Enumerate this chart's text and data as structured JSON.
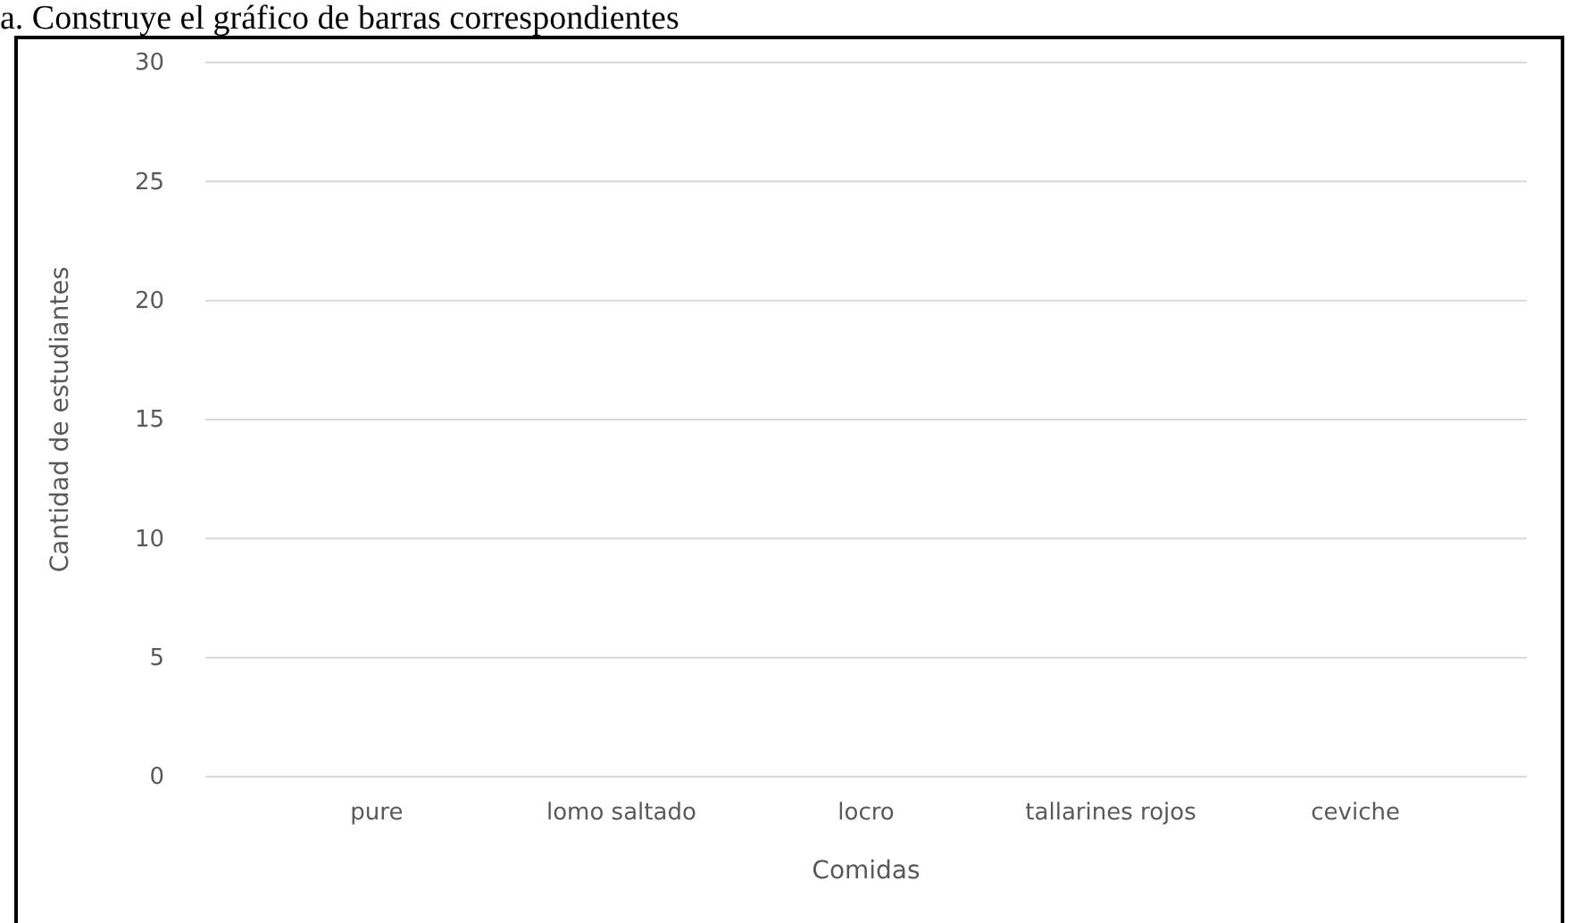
{
  "chart_data": {
    "type": "bar",
    "title": "a.        Construye el gráfico de barras correspondientes",
    "categories": [
      "pure",
      "lomo saltado",
      "locro",
      "tallarines rojos",
      "ceviche"
    ],
    "values": [
      null,
      null,
      null,
      null,
      null
    ],
    "xlabel": "Comidas",
    "ylabel": "Cantidad de estudiantes",
    "ylim": [
      0,
      30
    ],
    "yticks": [
      0,
      5,
      10,
      15,
      20,
      25,
      30
    ],
    "grid": "y"
  }
}
